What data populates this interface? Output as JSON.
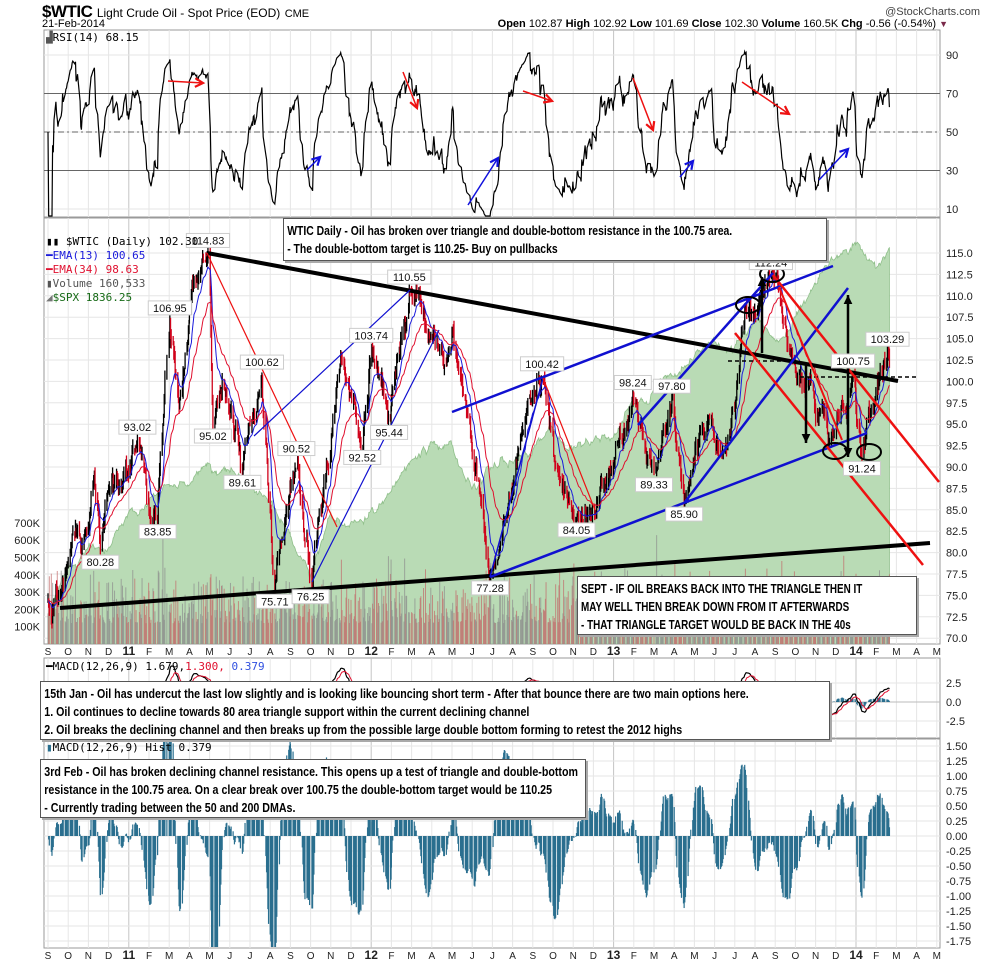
{
  "header": {
    "symbol": "$WTIC",
    "name": "Light Crude Oil - Spot Price (EOD)",
    "exchange": "CME",
    "date": "21-Feb-2014",
    "copyright": "@StockCharts.com",
    "open_label": "Open",
    "open": "102.87",
    "high_label": "High",
    "high": "102.92",
    "low_label": "Low",
    "low": "101.69",
    "close_label": "Close",
    "close": "102.30",
    "volume_label": "Volume",
    "volume": "160.5K",
    "chg_label": "Chg",
    "chg": "-0.56 (-0.54%)",
    "chg_direction_icon": "triangle-down"
  },
  "rsi_panel": {
    "label": "RSI(14) 68.15"
  },
  "legend": {
    "price": "$WTIC (Daily) 102.30",
    "ema13": "EMA(13) 100.65",
    "ema34": "EMA(34) 98.63",
    "volume": "Volume 160,533",
    "spx": "$SPX 1836.25"
  },
  "macd_panel": {
    "label": "MACD(12,26,9)",
    "macd": "1.679,",
    "signal": "1.300,",
    "hist": "0.379"
  },
  "hist_panel": {
    "label": "MACD(12,26,9) Hist 0.379"
  },
  "annotations": {
    "top_box": [
      "WTIC Daily - Oil has broken over triangle and double-bottom resistance in the 100.75 area.",
      "- The double-bottom target is 110.25- Buy on pullbacks"
    ],
    "sept_box": [
      "SEPT - IF OIL BREAKS BACK INTO THE TRIANGLE THEN IT",
      "MAY WELL THEN BREAK DOWN FROM IT AFTERWARDS",
      "- THAT TRIANGLE TARGET WOULD BE BACK IN THE 40s"
    ],
    "jan_box": [
      "15th Jan - Oil has undercut the last low slightly and is looking like bouncing short term - After that bounce there are two main options here.",
      "1. Oil continues to decline towards 80 area triangle support within the current declining channel",
      "2. Oil breaks the declining channel and then breaks up from the possible large double bottom forming to retest the 2012 highs"
    ],
    "feb_box": [
      "3rd Feb - Oil has broken declining channel resistance. This opens up a test of triangle and double-bottom",
      "resistance in the 100.75 area. On a clear break over 100.75 the double-bottom target would be 110.25",
      "- Currently trading between the 50 and 200 DMAs."
    ]
  },
  "colors": {
    "price_up": "#000000",
    "price_down": "#d0021b",
    "ema13": "#1a1adb",
    "ema34": "#e0102f",
    "spx_fill": "#b9dbb5",
    "spx_line": "#8fbf8a",
    "volume_up": "#8c8c8c",
    "volume_down": "#c26a6a",
    "hist": "#2a6f8f",
    "trend_black": "#000000",
    "trend_blue": "#1010d0",
    "trend_red": "#ee1111"
  },
  "chart_data": {
    "type": "line",
    "title": "$WTIC Light Crude Oil - Spot Price (EOD)",
    "grid": true,
    "x_ticks": [
      "S",
      "O",
      "N",
      "D",
      "11",
      "F",
      "M",
      "A",
      "M",
      "J",
      "J",
      "A",
      "S",
      "O",
      "N",
      "D",
      "12",
      "F",
      "M",
      "A",
      "M",
      "J",
      "J",
      "A",
      "S",
      "O",
      "N",
      "D",
      "13",
      "F",
      "M",
      "A",
      "M",
      "J",
      "J",
      "A",
      "S",
      "O",
      "N",
      "D",
      "14",
      "F",
      "M",
      "A",
      "M"
    ],
    "price_axis": {
      "ticks": [
        "115.0",
        "112.5",
        "110.0",
        "107.5",
        "105.0",
        "102.5",
        "100.0",
        "97.5",
        "95.0",
        "92.5",
        "90.0",
        "87.5",
        "85.0",
        "82.5",
        "80.0",
        "77.5",
        "75.0",
        "72.5",
        "70.0"
      ],
      "ylim": [
        70,
        115
      ]
    },
    "volume_axis": {
      "ticks": [
        "700K",
        "600K",
        "500K",
        "400K",
        "300K",
        "200K",
        "100K"
      ]
    },
    "rsi_axis": {
      "ticks": [
        "90",
        "70",
        "50",
        "30",
        "10"
      ],
      "ylim": [
        0,
        100
      ],
      "levels": [
        70,
        50,
        30
      ]
    },
    "macd_axis": {
      "ticks": [
        "2.5",
        "0.0",
        "-2.5"
      ]
    },
    "hist_axis": {
      "ticks": [
        "1.50",
        "1.25",
        "1.00",
        "0.75",
        "0.50",
        "0.25",
        "0.00",
        "-0.25",
        "-0.50",
        "-0.75",
        "-1.00",
        "-1.25",
        "-1.50",
        "-1.75"
      ]
    },
    "price_path": [
      [
        "2010-09-01",
        74.5
      ],
      [
        "2010-09-07",
        72.0
      ],
      [
        "2010-09-24",
        76.5
      ],
      [
        "2010-10-08",
        82.5
      ],
      [
        "2010-10-20",
        80.0
      ],
      [
        "2010-11-11",
        88.0
      ],
      [
        "2010-11-19",
        80.28
      ],
      [
        "2010-12-07",
        89.0
      ],
      [
        "2010-12-20",
        88.0
      ],
      [
        "2011-01-14",
        93.02
      ],
      [
        "2011-01-28",
        86.5
      ],
      [
        "2011-02-14",
        83.85
      ],
      [
        "2011-03-02",
        106.95
      ],
      [
        "2011-03-16",
        97.0
      ],
      [
        "2011-04-08",
        112.0
      ],
      [
        "2011-04-29",
        114.83
      ],
      [
        "2011-05-06",
        95.02
      ],
      [
        "2011-05-20",
        100.0
      ],
      [
        "2011-06-20",
        89.61
      ],
      [
        "2011-07-19",
        100.62
      ],
      [
        "2011-08-08",
        75.71
      ],
      [
        "2011-09-10",
        90.52
      ],
      [
        "2011-10-01",
        76.25
      ],
      [
        "2011-11-16",
        103.0
      ],
      [
        "2011-12-18",
        92.52
      ],
      [
        "2012-01-01",
        103.74
      ],
      [
        "2012-01-28",
        95.44
      ],
      [
        "2012-02-28",
        110.55
      ],
      [
        "2012-03-25",
        105.0
      ],
      [
        "2012-04-20",
        102.0
      ],
      [
        "2012-05-01",
        106.0
      ],
      [
        "2012-06-28",
        77.28
      ],
      [
        "2012-08-10",
        92.0
      ],
      [
        "2012-09-15",
        100.42
      ],
      [
        "2012-10-05",
        90.0
      ],
      [
        "2012-11-06",
        84.05
      ],
      [
        "2012-12-10",
        86.0
      ],
      [
        "2013-01-30",
        98.24
      ],
      [
        "2013-03-01",
        89.33
      ],
      [
        "2013-03-28",
        97.8
      ],
      [
        "2013-04-16",
        85.9
      ],
      [
        "2013-05-20",
        95.0
      ],
      [
        "2013-06-24",
        94.0
      ],
      [
        "2013-07-19",
        108.0
      ],
      [
        "2013-08-25",
        112.24
      ],
      [
        "2013-09-20",
        104.0
      ],
      [
        "2013-10-20",
        100.0
      ],
      [
        "2013-11-20",
        92.5
      ],
      [
        "2013-12-27",
        100.75
      ],
      [
        "2014-01-10",
        91.24
      ],
      [
        "2014-02-18",
        103.29
      ],
      [
        "2014-02-21",
        102.3
      ]
    ],
    "price_labels": [
      {
        "date": "2010-11-19",
        "value": "80.28"
      },
      {
        "date": "2011-01-14",
        "value": "93.02"
      },
      {
        "date": "2011-02-14",
        "value": "83.85"
      },
      {
        "date": "2011-03-02",
        "value": "106.95"
      },
      {
        "date": "2011-04-29",
        "value": "114.83"
      },
      {
        "date": "2011-05-06",
        "value": "95.02"
      },
      {
        "date": "2011-06-20",
        "value": "89.61"
      },
      {
        "date": "2011-07-19",
        "value": "100.62"
      },
      {
        "date": "2011-08-08",
        "value": "75.71"
      },
      {
        "date": "2011-09-10",
        "value": "90.52"
      },
      {
        "date": "2011-10-01",
        "value": "76.25"
      },
      {
        "date": "2011-12-18",
        "value": "92.52"
      },
      {
        "date": "2012-01-01",
        "value": "103.74"
      },
      {
        "date": "2012-01-28",
        "value": "95.44"
      },
      {
        "date": "2012-02-28",
        "value": "110.55"
      },
      {
        "date": "2012-06-28",
        "value": "77.28"
      },
      {
        "date": "2012-09-15",
        "value": "100.42"
      },
      {
        "date": "2012-11-06",
        "value": "84.05"
      },
      {
        "date": "2013-01-30",
        "value": "98.24"
      },
      {
        "date": "2013-03-01",
        "value": "89.33"
      },
      {
        "date": "2013-03-28",
        "value": "97.80"
      },
      {
        "date": "2013-04-16",
        "value": "85.90"
      },
      {
        "date": "2013-08-25",
        "value": "112.24"
      },
      {
        "date": "2013-12-27",
        "value": "100.75"
      },
      {
        "date": "2014-01-10",
        "value": "91.24"
      },
      {
        "date": "2014-02-18",
        "value": "103.29"
      }
    ],
    "spx_path": [
      [
        "2010-09-01",
        1049
      ],
      [
        "2010-09-30",
        1141
      ],
      [
        "2010-10-29",
        1183
      ],
      [
        "2010-11-30",
        1180
      ],
      [
        "2010-12-31",
        1258
      ],
      [
        "2011-01-31",
        1286
      ],
      [
        "2011-02-28",
        1327
      ],
      [
        "2011-03-31",
        1326
      ],
      [
        "2011-04-29",
        1363
      ],
      [
        "2011-05-31",
        1345
      ],
      [
        "2011-06-30",
        1321
      ],
      [
        "2011-07-29",
        1292
      ],
      [
        "2011-08-31",
        1219
      ],
      [
        "2011-09-30",
        1131
      ],
      [
        "2011-10-31",
        1253
      ],
      [
        "2011-11-30",
        1247
      ],
      [
        "2011-12-30",
        1258
      ],
      [
        "2012-01-31",
        1312
      ],
      [
        "2012-02-29",
        1366
      ],
      [
        "2012-03-30",
        1408
      ],
      [
        "2012-04-30",
        1398
      ],
      [
        "2012-05-31",
        1310
      ],
      [
        "2012-06-29",
        1362
      ],
      [
        "2012-07-31",
        1379
      ],
      [
        "2012-08-31",
        1407
      ],
      [
        "2012-09-28",
        1441
      ],
      [
        "2012-10-31",
        1412
      ],
      [
        "2012-11-30",
        1416
      ],
      [
        "2012-12-31",
        1426
      ],
      [
        "2013-01-31",
        1498
      ],
      [
        "2013-02-28",
        1515
      ],
      [
        "2013-03-28",
        1569
      ],
      [
        "2013-04-30",
        1598
      ],
      [
        "2013-05-31",
        1631
      ],
      [
        "2013-06-28",
        1606
      ],
      [
        "2013-07-31",
        1686
      ],
      [
        "2013-08-30",
        1633
      ],
      [
        "2013-09-30",
        1682
      ],
      [
        "2013-10-31",
        1757
      ],
      [
        "2013-11-29",
        1806
      ],
      [
        "2013-12-31",
        1848
      ],
      [
        "2014-01-31",
        1783
      ],
      [
        "2014-02-21",
        1836
      ]
    ],
    "last_values": {
      "close": 102.3,
      "ema13": 100.65,
      "ema34": 98.63,
      "volume": 160533,
      "spx": 1836.25,
      "rsi": 68.15,
      "macd": 1.679,
      "signal": 1.3,
      "hist": 0.379
    }
  }
}
